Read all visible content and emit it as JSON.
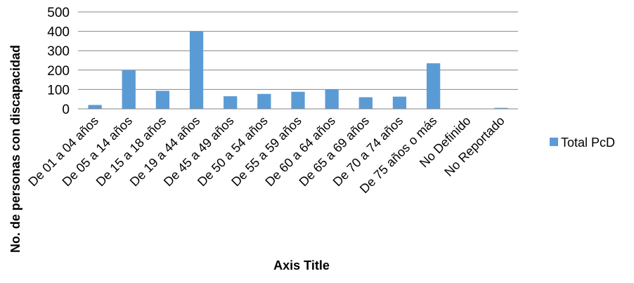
{
  "chart_data": {
    "type": "bar",
    "categories": [
      "De 01 a 04 años",
      "De 05 a 14 años",
      "De 15 a 18 años",
      "De 19 a 44 años",
      "De 45 a 49 años",
      "De 50 a 54 años",
      "De 55 a 59 años",
      "De 60 a 64 años",
      "De 65 a 69 años",
      "De 70 a 74 años",
      "De 75 años o más",
      "No Definido",
      "No Reportado"
    ],
    "series": [
      {
        "name": "Total PcD",
        "values": [
          20,
          200,
          93,
          400,
          65,
          77,
          88,
          100,
          60,
          63,
          235,
          0,
          5
        ]
      }
    ],
    "xlabel": "Axis Title",
    "ylabel": "No. de personas con discapacidad",
    "ylim": [
      0,
      500
    ],
    "yticks": [
      0,
      100,
      200,
      300,
      400,
      500
    ],
    "grid": true,
    "legend_position": "right",
    "colors": {
      "bar": "#5B9BD5",
      "grid": "#868686",
      "axis": "#868686"
    }
  }
}
